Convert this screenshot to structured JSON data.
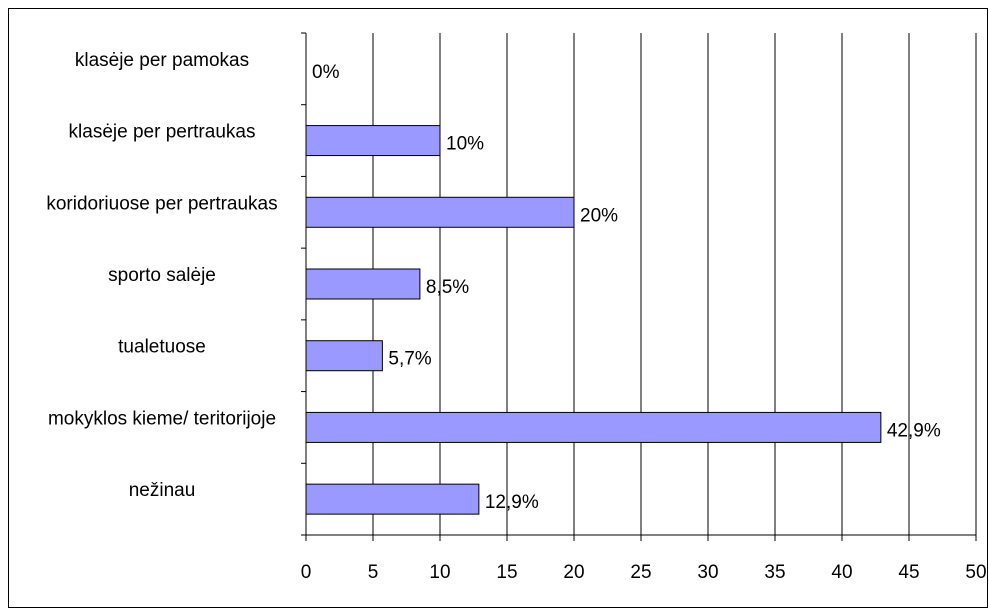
{
  "chart_data": {
    "type": "bar",
    "orientation": "horizontal",
    "categories": [
      "klasėje per pamokas",
      "klasėje per pertraukas",
      "koridoriuose per pertraukas",
      "sporto salėje",
      "tualetuose",
      "mokyklos kieme/ teritorijoje",
      "nežinau"
    ],
    "values": [
      0,
      10,
      20,
      8.5,
      5.7,
      42.9,
      12.9
    ],
    "value_labels": [
      "0%",
      "10%",
      "20%",
      "8,5%",
      "5,7%",
      "42,9%",
      "12,9%"
    ],
    "color": "#9999ff",
    "xlim": [
      0,
      50
    ],
    "xticks": [
      0,
      5,
      10,
      15,
      20,
      25,
      30,
      35,
      40,
      45,
      50
    ],
    "grid": true
  }
}
